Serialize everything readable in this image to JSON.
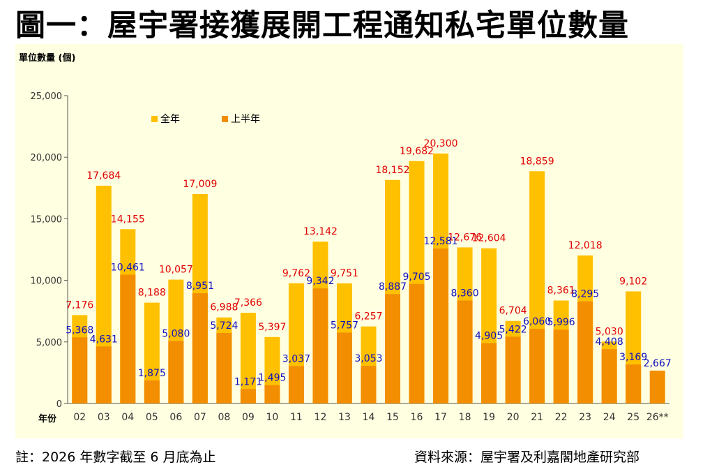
{
  "title": "圖一：屋宇署接獲展開工程通知私宅單位數量",
  "footer": {
    "note": "註：2026 年數字截至 6 月底為止",
    "source": "資料來源：屋宇署及利嘉閣地產研究部"
  },
  "colors": {
    "full_year": "#ffc000",
    "first_half": "#f28e00",
    "background": "#ffffe1",
    "full_label": "#e00000",
    "half_label": "#1010c0"
  },
  "chart_data": {
    "type": "bar",
    "ylabel": "單位數量 (個)",
    "xlabel": "年份",
    "ylim": [
      0,
      25000
    ],
    "yticks": [
      "0",
      "5,000",
      "10,000",
      "15,000",
      "20,000",
      "25,000"
    ],
    "grid": false,
    "legend_position": "top-left",
    "categories": [
      "02",
      "03",
      "04",
      "05",
      "06",
      "07",
      "08",
      "09",
      "10",
      "11",
      "12",
      "13",
      "14",
      "15",
      "16",
      "17",
      "18",
      "19",
      "20",
      "21",
      "22",
      "23",
      "24",
      "25",
      "26**"
    ],
    "series": [
      {
        "name": "全年",
        "values": [
          7176,
          17684,
          14155,
          8188,
          10057,
          17009,
          6988,
          7366,
          5397,
          9762,
          13142,
          9751,
          6257,
          18152,
          19682,
          20300,
          12676,
          12604,
          6704,
          18859,
          8361,
          12018,
          5030,
          9102,
          null
        ],
        "labels": [
          "7,176",
          "17,684",
          "14,155",
          "8,188",
          "10,057",
          "17,009",
          "6,988",
          "7,366",
          "5,397",
          "9,762",
          "13,142",
          "9,751",
          "6,257",
          "18,152",
          "19,682",
          "20,300",
          "12,676",
          "12,604",
          "6,704",
          "18,859",
          "8,361",
          "12,018",
          "5,030",
          "9,102",
          ""
        ]
      },
      {
        "name": "上半年",
        "values": [
          5368,
          4631,
          10461,
          1875,
          5080,
          8951,
          5724,
          1171,
          1495,
          3037,
          9342,
          5757,
          3053,
          8887,
          9705,
          12581,
          8360,
          4905,
          5422,
          6060,
          5996,
          8295,
          4408,
          3169,
          2667
        ],
        "labels": [
          "5,368",
          "4,631",
          "10,461",
          "1,875",
          "5,080",
          "8,951",
          "5,724",
          "1,171",
          "1,495",
          "3,037",
          "9,342",
          "5,757",
          "3,053",
          "8,887",
          "9,705",
          "12,581",
          "8,360",
          "4,905",
          "5,422",
          "6,060",
          "5,996",
          "8,295",
          "4,408",
          "3,169",
          "2,667"
        ]
      }
    ]
  }
}
